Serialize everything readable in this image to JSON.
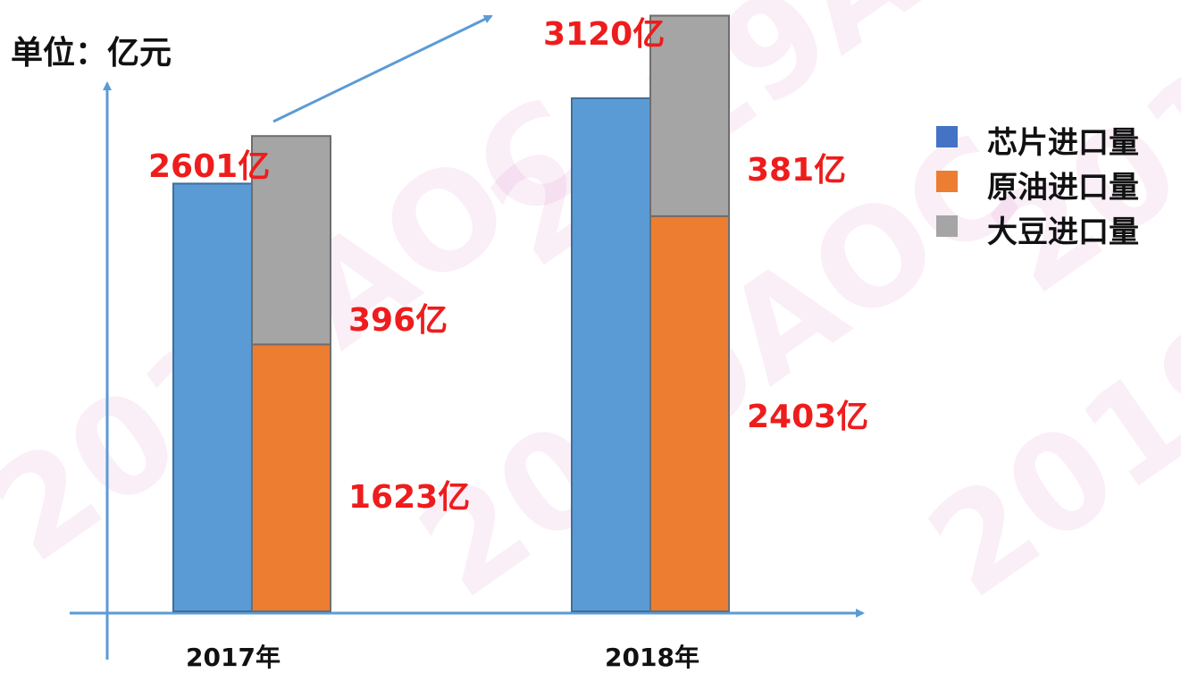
{
  "unit_label": "单位：亿元",
  "watermark_text": "2019AOC",
  "colors": {
    "chip": "#5b9bd5",
    "oil": "#ed7d31",
    "soy": "#a5a5a5",
    "bar_border_chip": "#3f6f9a",
    "bar_border_stack": "#6e6e6e",
    "axis": "#5b9bd5",
    "value_label": "#ee1c1c"
  },
  "legend": [
    {
      "label": "芯片进口量",
      "color": "#4472c4",
      "icon": "square-swatch"
    },
    {
      "label": "原油进口量",
      "color": "#ed7d31",
      "icon": "square-swatch"
    },
    {
      "label": "大豆进口量",
      "color": "#a5a5a5",
      "icon": "square-swatch"
    }
  ],
  "chart_data": {
    "type": "bar",
    "stacked_series": [
      "原油进口量",
      "大豆进口量"
    ],
    "categories": [
      "2017年",
      "2018年"
    ],
    "ylim": [
      0,
      3500
    ],
    "series": [
      {
        "name": "芯片进口量",
        "values": [
          2601,
          3120
        ]
      },
      {
        "name": "原油进口量",
        "values": [
          1623,
          2403
        ]
      },
      {
        "name": "大豆进口量",
        "values": [
          396,
          381
        ]
      }
    ],
    "data_labels": {
      "chip": [
        "2601亿",
        "3120亿"
      ],
      "oil": [
        "1623亿",
        "2403亿"
      ],
      "soy": [
        "396亿",
        "381亿"
      ]
    },
    "legend_position": "right",
    "grid": false
  }
}
